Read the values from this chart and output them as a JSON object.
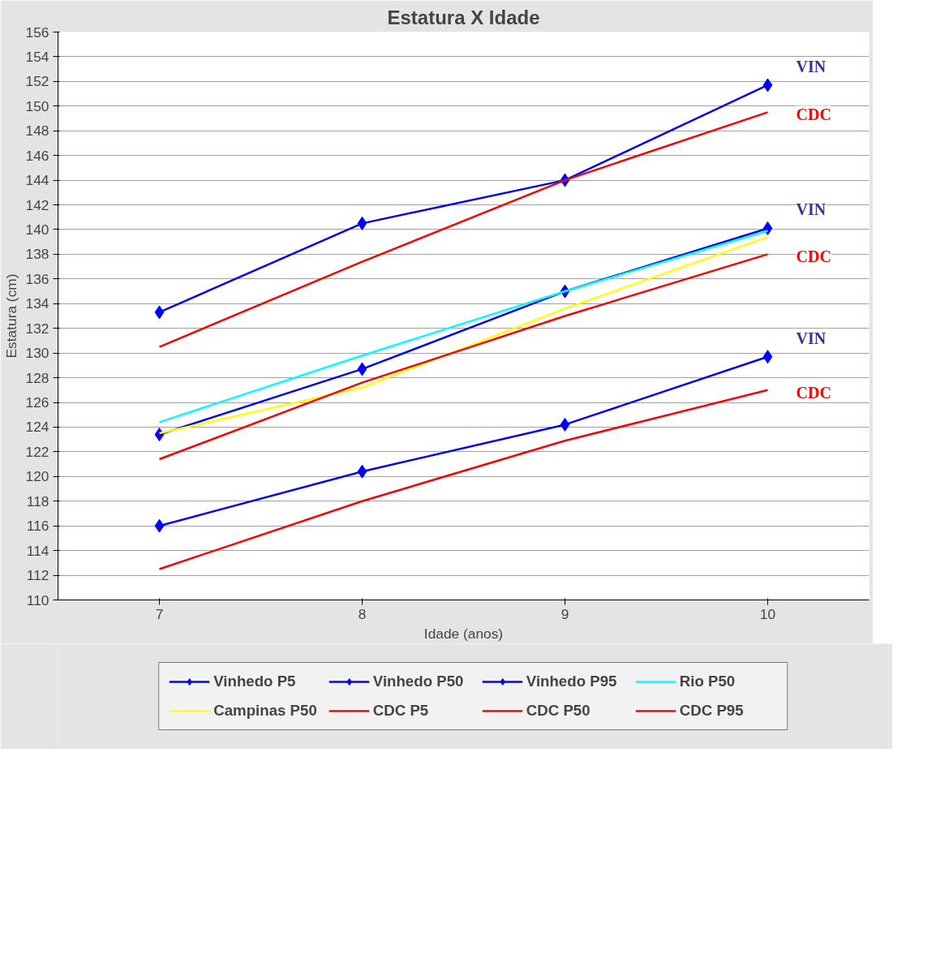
{
  "chart_data": {
    "type": "line",
    "title": "Estatura X Idade",
    "xlabel": "Idade (anos)",
    "ylabel": "Estatura (cm)",
    "x": [
      7,
      8,
      9,
      10
    ],
    "xlim": [
      6.5,
      10.5
    ],
    "xticks": [
      7,
      8,
      9,
      10
    ],
    "ylim": [
      110,
      156
    ],
    "yticks": [
      110,
      112,
      114,
      116,
      118,
      120,
      122,
      124,
      126,
      128,
      130,
      132,
      134,
      136,
      138,
      140,
      142,
      144,
      146,
      148,
      150,
      152,
      154,
      156
    ],
    "grid": "y",
    "legend": "bottom",
    "series": [
      {
        "name": "Vinhedo P5",
        "color": "#0000ff",
        "marker": "diamond",
        "values": [
          116.0,
          120.4,
          124.2,
          129.7
        ]
      },
      {
        "name": "Vinhedo P50",
        "color": "#0000ff",
        "marker": "diamond",
        "values": [
          123.4,
          128.7,
          135.0,
          140.1
        ]
      },
      {
        "name": "Vinhedo P95",
        "color": "#0000ff",
        "marker": "diamond",
        "values": [
          133.3,
          140.5,
          144.0,
          151.7
        ]
      },
      {
        "name": "Rio P50",
        "color": "#00ffff",
        "marker": "none",
        "values": [
          124.4,
          129.8,
          135.0,
          139.9
        ]
      },
      {
        "name": "Campinas P50",
        "color": "#ffff00",
        "marker": "none",
        "values": [
          123.5,
          127.2,
          133.6,
          139.4
        ]
      },
      {
        "name": "CDC P5",
        "color": "#ff0000",
        "marker": "none",
        "values": [
          112.5,
          118.0,
          122.9,
          127.0
        ]
      },
      {
        "name": "CDC P50",
        "color": "#ff0000",
        "marker": "none",
        "values": [
          121.4,
          127.6,
          133.0,
          138.0
        ]
      },
      {
        "name": "CDC P95",
        "color": "#ff0000",
        "marker": "none",
        "values": [
          130.5,
          137.4,
          144.0,
          149.5
        ]
      }
    ],
    "annotations": [
      "VIN",
      "CDC",
      "VIN",
      "CDC",
      "VIN",
      "CDC"
    ]
  }
}
